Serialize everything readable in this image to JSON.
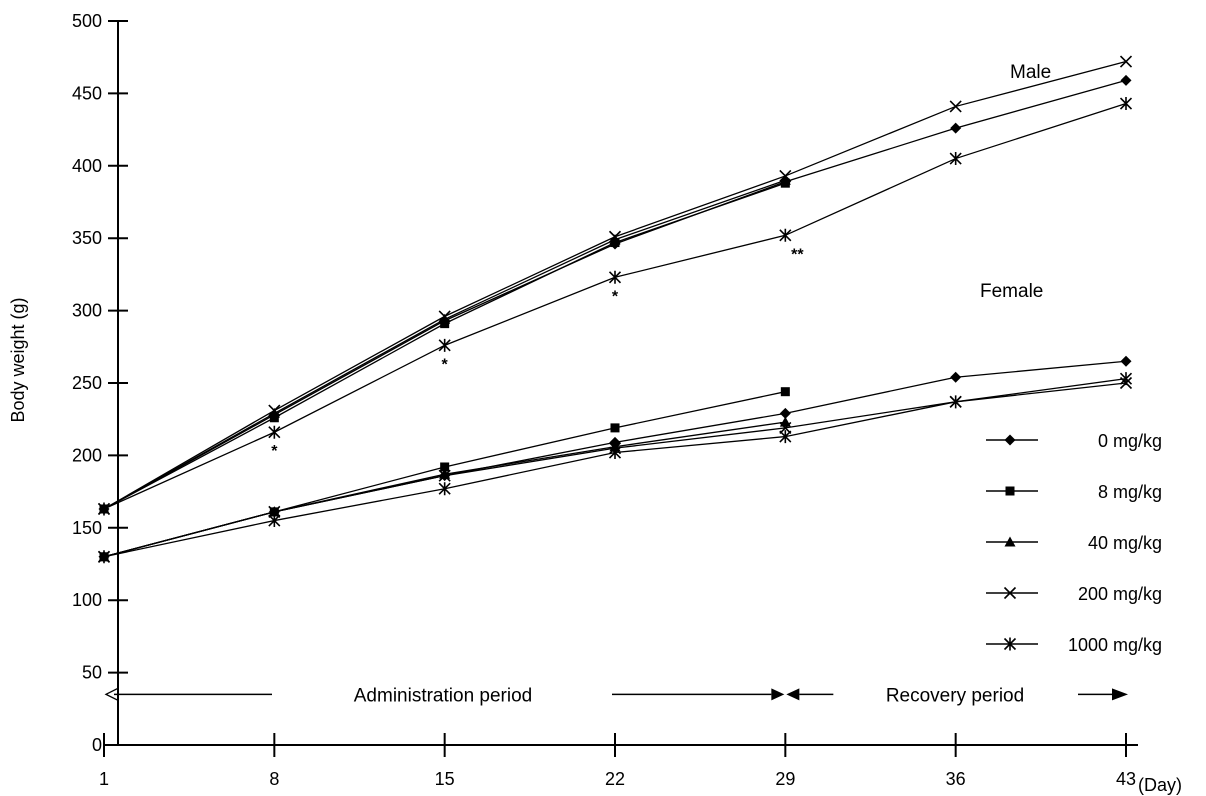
{
  "chart_data": {
    "type": "line",
    "title": "",
    "xlabel": "",
    "x_unit": "(Day)",
    "ylabel": "Body weight (g)",
    "x": [
      1,
      8,
      15,
      22,
      29,
      36,
      43
    ],
    "xlim": [
      1,
      43
    ],
    "ylim": [
      0,
      500
    ],
    "yticks": [
      0,
      50,
      100,
      150,
      200,
      250,
      300,
      350,
      400,
      450,
      500
    ],
    "grid": false,
    "legend_position": "right",
    "series_names": [
      "0 mg/kg",
      "8 mg/kg",
      "40 mg/kg",
      "200 mg/kg",
      "1000 mg/kg"
    ],
    "markers": [
      "diamond",
      "square",
      "triangle",
      "x",
      "asterisk"
    ],
    "groups": [
      {
        "name": "Male",
        "series": [
          {
            "name": "0 mg/kg",
            "values": [
              163,
              228,
              293,
              346,
              389,
              426,
              459
            ]
          },
          {
            "name": "8 mg/kg",
            "values": [
              163,
              226,
              291,
              347,
              388,
              null,
              null
            ]
          },
          {
            "name": "40 mg/kg",
            "values": [
              163,
              229,
              294,
              349,
              390,
              null,
              null
            ]
          },
          {
            "name": "200 mg/kg",
            "values": [
              163,
              231,
              296,
              351,
              393,
              441,
              472
            ]
          },
          {
            "name": "1000 mg/kg",
            "values": [
              163,
              216,
              276,
              323,
              352,
              405,
              443
            ]
          }
        ]
      },
      {
        "name": "Female",
        "series": [
          {
            "name": "0 mg/kg",
            "values": [
              130,
              161,
              186,
              209,
              229,
              254,
              265
            ]
          },
          {
            "name": "8 mg/kg",
            "values": [
              130,
              161,
              192,
              219,
              244,
              null,
              null
            ]
          },
          {
            "name": "40 mg/kg",
            "values": [
              130,
              161,
              187,
              206,
              223,
              null,
              null
            ]
          },
          {
            "name": "200 mg/kg",
            "values": [
              130,
              161,
              186,
              205,
              219,
              237,
              250
            ]
          },
          {
            "name": "1000 mg/kg",
            "values": [
              130,
              155,
              177,
              202,
              213,
              237,
              253
            ]
          }
        ]
      }
    ],
    "annotations": [
      {
        "x": 8,
        "y": 216,
        "text": "*"
      },
      {
        "x": 15,
        "y": 276,
        "text": "*"
      },
      {
        "x": 22,
        "y": 323,
        "text": "*"
      },
      {
        "x": 29,
        "y": 352,
        "text": "**"
      }
    ],
    "periods": [
      {
        "label": "Administration period",
        "from": 1,
        "to": 29
      },
      {
        "label": "Recovery period",
        "from": 29,
        "to": 43
      }
    ]
  }
}
